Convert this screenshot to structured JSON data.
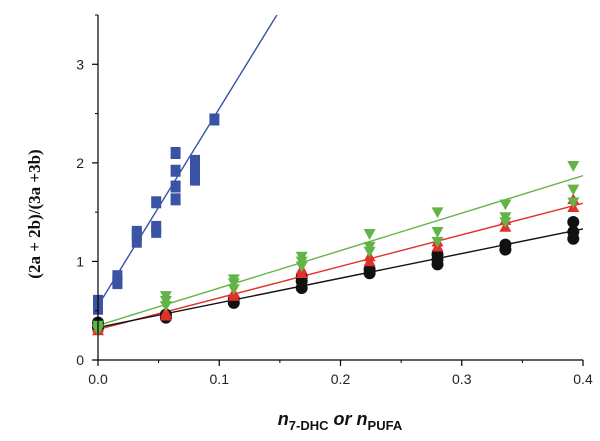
{
  "chart_data": {
    "type": "scatter",
    "title": "",
    "ylabel": "(2a + 2b)/(3a +3b)",
    "xlabel": {
      "n1": "n",
      "sub1": "7-DHC",
      "mid": " or ",
      "n2": "n",
      "sub2": "PUFA"
    },
    "xlim": [
      0,
      0.4
    ],
    "ylim": [
      0,
      3.5
    ],
    "xticks": [
      0,
      0.1,
      0.2,
      0.3,
      0.4
    ],
    "xtick_labels": [
      "0.0",
      "0.1",
      "0.2",
      "0.3",
      "0.4"
    ],
    "yticks": [
      0,
      1,
      2,
      3
    ],
    "ytick_labels": [
      "0",
      "1",
      "2",
      "3"
    ],
    "grid": false,
    "legend": "none",
    "series": [
      {
        "marker": "square",
        "color": "#3a53a4",
        "points": [
          [
            0.0,
            0.52
          ],
          [
            0.0,
            0.6
          ],
          [
            0.0,
            0.55
          ],
          [
            0.016,
            0.78
          ],
          [
            0.016,
            0.85
          ],
          [
            0.016,
            0.8
          ],
          [
            0.032,
            1.2
          ],
          [
            0.032,
            1.27
          ],
          [
            0.032,
            1.3
          ],
          [
            0.048,
            1.3
          ],
          [
            0.048,
            1.35
          ],
          [
            0.048,
            1.6
          ],
          [
            0.064,
            1.63
          ],
          [
            0.064,
            1.76
          ],
          [
            0.064,
            1.92
          ],
          [
            0.064,
            2.1
          ],
          [
            0.08,
            1.83
          ],
          [
            0.08,
            1.92
          ],
          [
            0.08,
            2.02
          ],
          [
            0.096,
            2.44
          ]
        ],
        "fit": {
          "slope": 20.0,
          "intercept": 0.55
        }
      },
      {
        "marker": "triangle-down",
        "color": "#63b447",
        "points": [
          [
            0.0,
            0.32
          ],
          [
            0.0,
            0.35
          ],
          [
            0.0,
            0.3
          ],
          [
            0.056,
            0.55
          ],
          [
            0.056,
            0.6
          ],
          [
            0.056,
            0.65
          ],
          [
            0.112,
            0.72
          ],
          [
            0.112,
            0.78
          ],
          [
            0.112,
            0.82
          ],
          [
            0.168,
            0.95
          ],
          [
            0.168,
            1.0
          ],
          [
            0.168,
            1.05
          ],
          [
            0.224,
            1.1
          ],
          [
            0.224,
            1.15
          ],
          [
            0.224,
            1.28
          ],
          [
            0.28,
            1.2
          ],
          [
            0.28,
            1.3
          ],
          [
            0.28,
            1.5
          ],
          [
            0.336,
            1.4
          ],
          [
            0.336,
            1.45
          ],
          [
            0.336,
            1.58
          ],
          [
            0.392,
            1.6
          ],
          [
            0.392,
            1.73
          ],
          [
            0.392,
            1.97
          ]
        ],
        "fit": {
          "slope": 3.8,
          "intercept": 0.35
        }
      },
      {
        "marker": "triangle-up",
        "color": "#e0312b",
        "points": [
          [
            0.0,
            0.3
          ],
          [
            0.0,
            0.33
          ],
          [
            0.056,
            0.45
          ],
          [
            0.056,
            0.48
          ],
          [
            0.112,
            0.65
          ],
          [
            0.112,
            0.68
          ],
          [
            0.168,
            0.88
          ],
          [
            0.168,
            0.92
          ],
          [
            0.224,
            1.0
          ],
          [
            0.224,
            1.05
          ],
          [
            0.28,
            1.15
          ],
          [
            0.28,
            1.2
          ],
          [
            0.336,
            1.35
          ],
          [
            0.336,
            1.42
          ],
          [
            0.392,
            1.55
          ],
          [
            0.392,
            1.63
          ]
        ],
        "fit": {
          "slope": 3.2,
          "intercept": 0.31
        }
      },
      {
        "marker": "circle",
        "color": "#111111",
        "points": [
          [
            0.0,
            0.33
          ],
          [
            0.0,
            0.36
          ],
          [
            0.0,
            0.38
          ],
          [
            0.056,
            0.43
          ],
          [
            0.056,
            0.46
          ],
          [
            0.112,
            0.58
          ],
          [
            0.112,
            0.62
          ],
          [
            0.168,
            0.73
          ],
          [
            0.168,
            0.8
          ],
          [
            0.168,
            0.84
          ],
          [
            0.224,
            0.88
          ],
          [
            0.224,
            0.92
          ],
          [
            0.28,
            0.97
          ],
          [
            0.28,
            1.02
          ],
          [
            0.28,
            1.07
          ],
          [
            0.336,
            1.12
          ],
          [
            0.336,
            1.17
          ],
          [
            0.392,
            1.23
          ],
          [
            0.392,
            1.3
          ],
          [
            0.392,
            1.4
          ]
        ],
        "fit": {
          "slope": 2.5,
          "intercept": 0.33
        }
      }
    ]
  }
}
